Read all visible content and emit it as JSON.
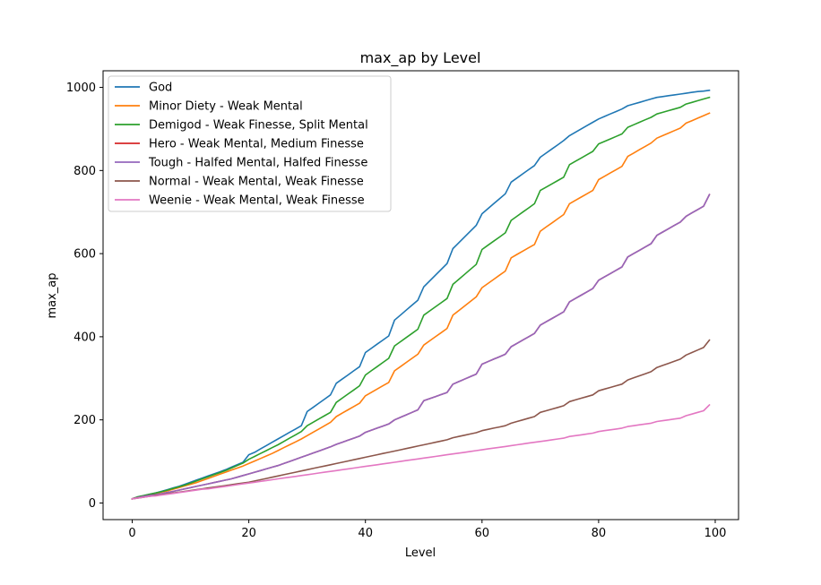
{
  "chart_data": {
    "type": "line",
    "title": "max_ap by Level",
    "xlabel": "Level",
    "ylabel": "max_ap",
    "xlim": [
      -5,
      104
    ],
    "ylim": [
      -40,
      1040
    ],
    "xticks": [
      0,
      20,
      40,
      60,
      80,
      100
    ],
    "yticks": [
      0,
      200,
      400,
      600,
      800,
      1000
    ],
    "grid": false,
    "legend_position": "top-left",
    "x": {
      "start": 0,
      "end": 99,
      "step": 1
    },
    "series": [
      {
        "name": "God",
        "color": "#1f77b4",
        "values": [
          10,
          15,
          18,
          21,
          24,
          28,
          32,
          36,
          40,
          45,
          50,
          55,
          60,
          65,
          70,
          75,
          80,
          86,
          92,
          98,
          116,
          122,
          130,
          138,
          146,
          154,
          162,
          170,
          178,
          186,
          220,
          230,
          240,
          250,
          260,
          288,
          298,
          308,
          318,
          328,
          362,
          372,
          382,
          392,
          402,
          440,
          452,
          464,
          476,
          488,
          520,
          534,
          548,
          562,
          576,
          612,
          626,
          640,
          654,
          668,
          696,
          708,
          720,
          732,
          744,
          772,
          782,
          792,
          802,
          812,
          832,
          842,
          852,
          862,
          872,
          884,
          892,
          900,
          908,
          916,
          924,
          930,
          936,
          942,
          948,
          956,
          960,
          964,
          968,
          972,
          976,
          978,
          980,
          982,
          984,
          986,
          988,
          990,
          991,
          993
        ]
      },
      {
        "name": "Minor Diety - Weak Mental",
        "color": "#ff7f0e",
        "values": [
          10,
          14,
          17,
          20,
          23,
          26,
          29,
          33,
          37,
          41,
          45,
          49,
          54,
          59,
          64,
          69,
          74,
          79,
          84,
          89,
          95,
          101,
          107,
          113,
          119,
          126,
          133,
          140,
          147,
          154,
          162,
          170,
          178,
          186,
          194,
          208,
          216,
          224,
          232,
          240,
          258,
          266,
          274,
          282,
          290,
          318,
          328,
          338,
          348,
          358,
          380,
          390,
          400,
          410,
          420,
          452,
          463,
          474,
          485,
          496,
          518,
          528,
          538,
          548,
          558,
          590,
          598,
          606,
          614,
          622,
          654,
          664,
          674,
          684,
          694,
          720,
          728,
          736,
          744,
          752,
          778,
          786,
          794,
          802,
          810,
          834,
          842,
          850,
          858,
          866,
          878,
          884,
          890,
          896,
          902,
          914,
          920,
          926,
          932,
          938
        ]
      },
      {
        "name": "Demigod - Weak Finesse, Split Mental",
        "color": "#2ca02c",
        "values": [
          10,
          15,
          18,
          21,
          24,
          27,
          31,
          35,
          39,
          43,
          48,
          53,
          58,
          63,
          68,
          73,
          78,
          84,
          90,
          96,
          105,
          112,
          119,
          126,
          133,
          140,
          148,
          156,
          164,
          172,
          186,
          194,
          202,
          210,
          218,
          242,
          252,
          262,
          272,
          282,
          308,
          318,
          328,
          338,
          348,
          378,
          388,
          398,
          408,
          418,
          452,
          462,
          472,
          482,
          492,
          526,
          538,
          550,
          562,
          574,
          610,
          620,
          630,
          640,
          650,
          680,
          690,
          700,
          710,
          720,
          752,
          760,
          768,
          776,
          784,
          814,
          822,
          830,
          838,
          846,
          864,
          870,
          876,
          882,
          888,
          904,
          910,
          916,
          922,
          928,
          936,
          940,
          944,
          948,
          952,
          960,
          964,
          968,
          972,
          976
        ]
      },
      {
        "name": "Hero - Weak Mental, Medium Finesse",
        "color": "#d62728",
        "values": [
          10,
          13,
          16,
          18,
          20,
          22,
          25,
          28,
          31,
          34,
          37,
          40,
          43,
          46,
          49,
          52,
          55,
          58,
          62,
          66,
          70,
          74,
          78,
          82,
          86,
          90,
          95,
          100,
          105,
          110,
          115,
          120,
          125,
          130,
          135,
          141,
          146,
          151,
          156,
          161,
          170,
          175,
          180,
          185,
          190,
          200,
          206,
          212,
          218,
          224,
          246,
          251,
          256,
          261,
          266,
          286,
          292,
          298,
          304,
          310,
          334,
          340,
          346,
          352,
          358,
          376,
          384,
          392,
          400,
          408,
          428,
          436,
          444,
          452,
          460,
          484,
          492,
          500,
          508,
          516,
          536,
          544,
          552,
          560,
          568,
          592,
          600,
          608,
          616,
          624,
          644,
          652,
          660,
          668,
          676,
          690,
          698,
          706,
          714,
          742
        ]
      },
      {
        "name": "Tough - Halfed Mental, Halfed Finesse",
        "color": "#9467bd",
        "values": [
          10,
          13,
          16,
          18,
          20,
          22,
          25,
          28,
          31,
          34,
          37,
          40,
          43,
          46,
          49,
          52,
          55,
          58,
          62,
          66,
          70,
          74,
          78,
          82,
          86,
          90,
          95,
          100,
          105,
          110,
          115,
          120,
          125,
          130,
          135,
          141,
          146,
          151,
          156,
          161,
          170,
          175,
          180,
          185,
          190,
          200,
          206,
          212,
          218,
          224,
          246,
          251,
          256,
          261,
          266,
          286,
          292,
          298,
          304,
          310,
          334,
          340,
          346,
          352,
          358,
          376,
          384,
          392,
          400,
          408,
          428,
          436,
          444,
          452,
          460,
          484,
          492,
          500,
          508,
          516,
          536,
          544,
          552,
          560,
          568,
          592,
          600,
          608,
          616,
          624,
          644,
          652,
          660,
          668,
          676,
          690,
          698,
          706,
          714,
          742
        ]
      },
      {
        "name": "Normal - Weak Mental, Weak Finesse",
        "color": "#8c564b",
        "values": [
          10,
          12,
          14,
          16,
          18,
          20,
          22,
          24,
          26,
          28,
          30,
          32,
          34,
          36,
          38,
          40,
          42,
          44,
          46,
          48,
          50,
          53,
          56,
          59,
          62,
          65,
          68,
          71,
          74,
          77,
          80,
          83,
          86,
          89,
          92,
          95,
          98,
          101,
          104,
          107,
          110,
          113,
          116,
          119,
          122,
          125,
          128,
          131,
          134,
          137,
          140,
          143,
          146,
          149,
          152,
          157,
          160,
          163,
          166,
          169,
          174,
          177,
          180,
          183,
          186,
          192,
          196,
          200,
          204,
          208,
          218,
          222,
          226,
          230,
          234,
          244,
          248,
          252,
          256,
          260,
          270,
          274,
          278,
          282,
          286,
          296,
          301,
          306,
          311,
          316,
          326,
          331,
          336,
          341,
          346,
          356,
          362,
          368,
          374,
          392
        ]
      },
      {
        "name": "Weenie - Weak Mental, Weak Finesse",
        "color": "#e377c2",
        "values": [
          10,
          12,
          14,
          16,
          17,
          19,
          21,
          23,
          25,
          27,
          29,
          31,
          33,
          34,
          36,
          38,
          40,
          42,
          44,
          46,
          48,
          50,
          52,
          54,
          56,
          58,
          60,
          62,
          64,
          66,
          68,
          70,
          72,
          74,
          76,
          78,
          80,
          82,
          84,
          86,
          88,
          90,
          92,
          94,
          96,
          98,
          100,
          102,
          104,
          106,
          108,
          110,
          112,
          114,
          116,
          118,
          120,
          122,
          124,
          126,
          128,
          130,
          132,
          134,
          136,
          138,
          140,
          142,
          144,
          146,
          148,
          150,
          152,
          154,
          156,
          160,
          162,
          164,
          166,
          168,
          172,
          174,
          176,
          178,
          180,
          184,
          186,
          188,
          190,
          192,
          196,
          198,
          200,
          202,
          204,
          210,
          214,
          218,
          222,
          236
        ]
      }
    ]
  }
}
